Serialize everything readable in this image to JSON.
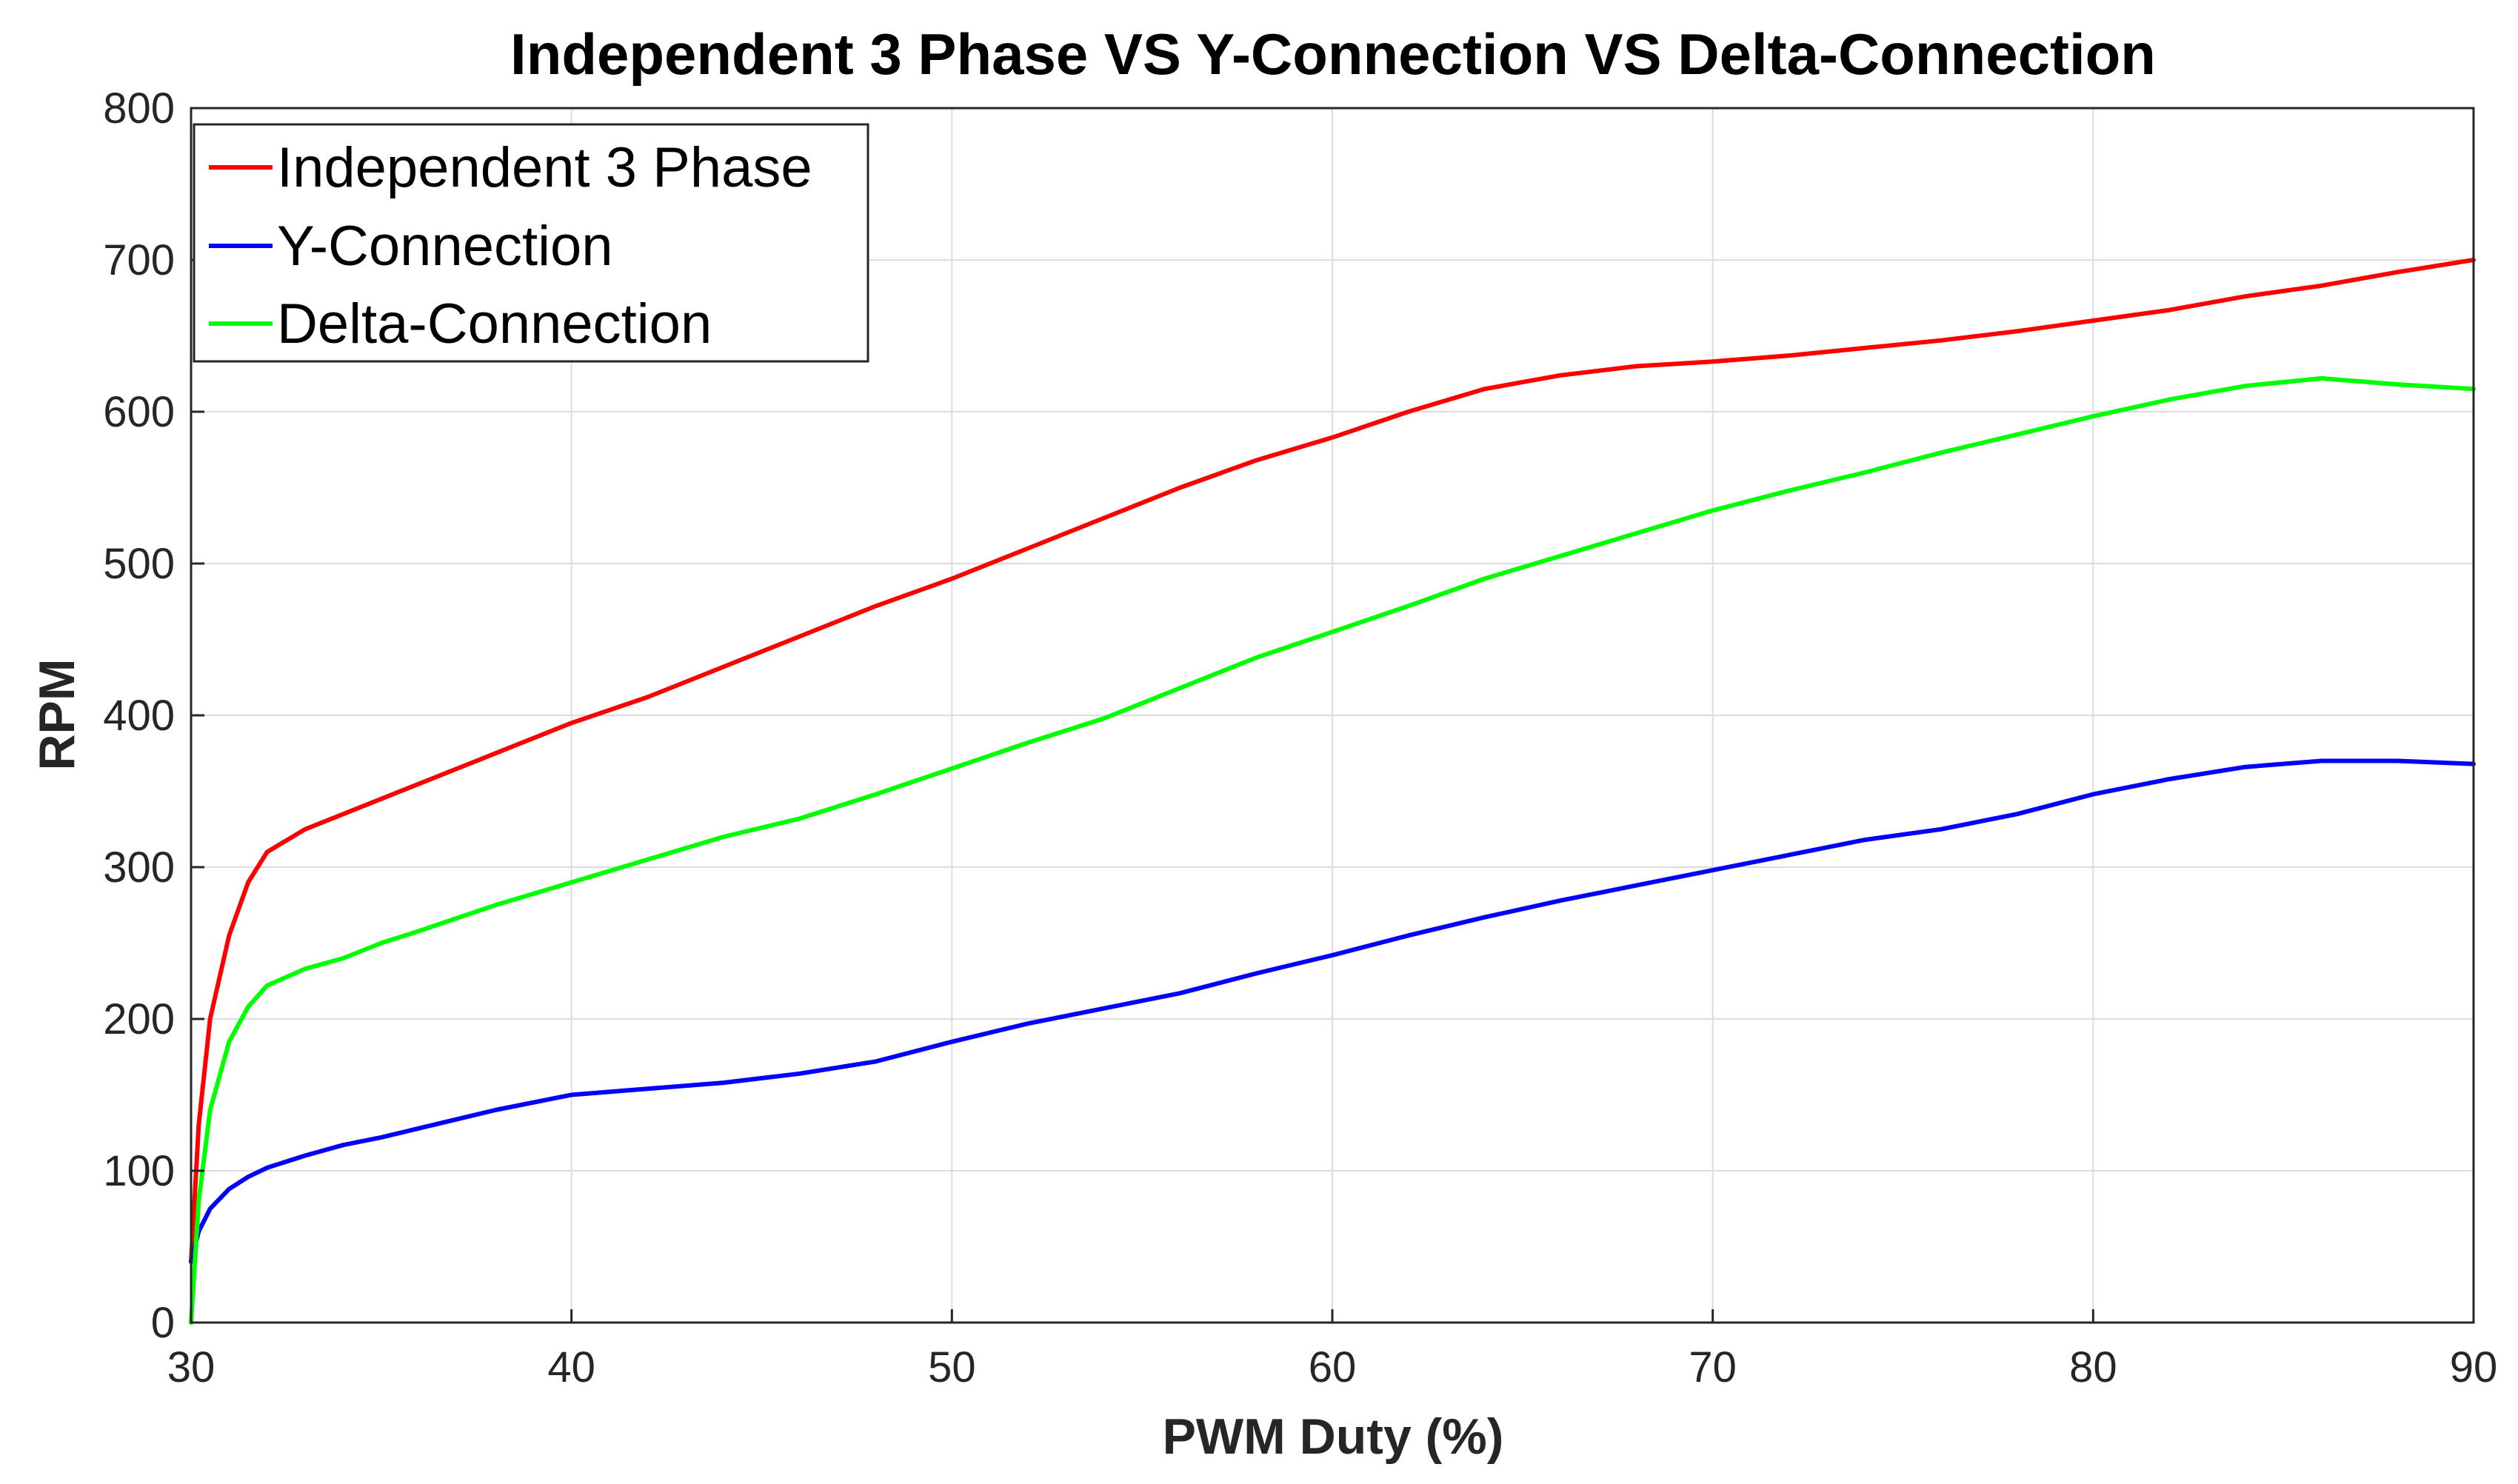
{
  "chart_data": {
    "type": "line",
    "title": "Independent 3 Phase  VS  Y-Connection  VS  Delta-Connection",
    "xlabel": "PWM Duty (%)",
    "ylabel": "RPM",
    "xlim": [
      30,
      90
    ],
    "ylim": [
      0,
      800
    ],
    "xticks": [
      30,
      40,
      50,
      60,
      70,
      80,
      90
    ],
    "yticks": [
      0,
      100,
      200,
      300,
      400,
      500,
      600,
      700,
      800
    ],
    "grid": true,
    "legend_position": "top-left",
    "series": [
      {
        "name": "Independent 3 Phase",
        "color": "#ff0000",
        "x": [
          30,
          30.2,
          30.5,
          31,
          31.5,
          32,
          33,
          34,
          35,
          36,
          38,
          40,
          42,
          44,
          46,
          48,
          50,
          52,
          54,
          56,
          58,
          60,
          62,
          64,
          66,
          68,
          70,
          72,
          74,
          76,
          78,
          80,
          82,
          84,
          86,
          88,
          90
        ],
        "y": [
          40,
          130,
          200,
          255,
          290,
          310,
          325,
          335,
          345,
          355,
          375,
          395,
          412,
          432,
          452,
          472,
          490,
          510,
          530,
          550,
          568,
          583,
          600,
          615,
          624,
          630,
          633,
          637,
          642,
          647,
          653,
          660,
          667,
          676,
          683,
          692,
          700
        ]
      },
      {
        "name": "Y-Connection",
        "color": "#0000ff",
        "x": [
          30,
          30.2,
          30.5,
          31,
          31.5,
          32,
          33,
          34,
          35,
          36,
          38,
          40,
          42,
          44,
          46,
          48,
          50,
          52,
          54,
          56,
          58,
          60,
          62,
          64,
          66,
          68,
          70,
          72,
          74,
          76,
          78,
          80,
          82,
          84,
          86,
          88,
          90
        ],
        "y": [
          40,
          60,
          75,
          88,
          96,
          102,
          110,
          117,
          122,
          128,
          140,
          150,
          154,
          158,
          164,
          172,
          185,
          197,
          207,
          217,
          230,
          242,
          255,
          267,
          278,
          288,
          298,
          308,
          318,
          325,
          335,
          348,
          358,
          366,
          370,
          370,
          368
        ]
      },
      {
        "name": "Delta-Connection",
        "color": "#00ff00",
        "x": [
          30,
          30.2,
          30.5,
          31,
          31.5,
          32,
          33,
          34,
          35,
          36,
          38,
          40,
          42,
          44,
          46,
          48,
          50,
          52,
          54,
          56,
          58,
          60,
          62,
          64,
          66,
          68,
          70,
          72,
          74,
          76,
          78,
          80,
          82,
          84,
          86,
          88,
          90
        ],
        "y": [
          0,
          80,
          140,
          185,
          208,
          222,
          233,
          240,
          250,
          258,
          275,
          290,
          305,
          320,
          332,
          348,
          365,
          382,
          398,
          418,
          438,
          455,
          472,
          490,
          505,
          520,
          535,
          548,
          560,
          573,
          585,
          597,
          608,
          617,
          622,
          618,
          615
        ]
      }
    ]
  }
}
